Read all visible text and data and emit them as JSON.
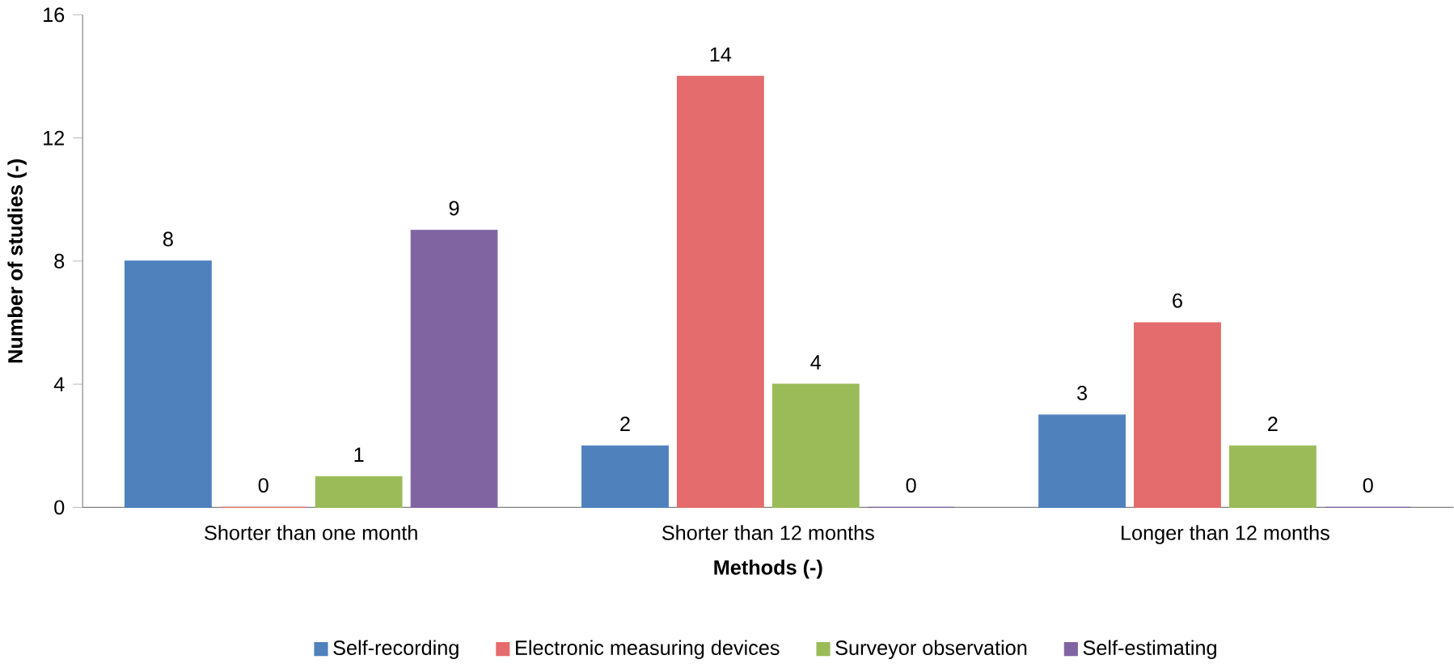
{
  "chart_data": {
    "type": "bar",
    "xlabel": "Methods (-)",
    "ylabel": "Number of studies (-)",
    "categories": [
      "Shorter than one month",
      "Shorter than 12 months",
      "Longer than 12 months"
    ],
    "series": [
      {
        "name": "Self-recording",
        "color": "#4f81bd",
        "values": [
          8,
          2,
          3
        ]
      },
      {
        "name": "Electronic measuring devices",
        "color": "#e46c6c",
        "values": [
          0,
          14,
          6
        ]
      },
      {
        "name": "Surveyor observation",
        "color": "#9bbb59",
        "values": [
          1,
          4,
          2
        ]
      },
      {
        "name": "Self-estimating",
        "color": "#8064a2",
        "values": [
          9,
          0,
          0
        ]
      }
    ],
    "ylim": [
      0,
      16
    ],
    "yticks": [
      0,
      4,
      8,
      12,
      16
    ],
    "data_labels": true,
    "legend": "bottom",
    "grid": false
  }
}
